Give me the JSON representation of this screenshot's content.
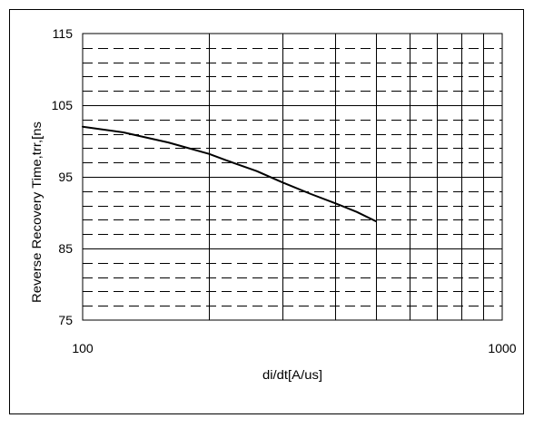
{
  "chart_data": {
    "type": "line",
    "title": "",
    "xlabel": "di/dt[A/us]",
    "ylabel": "Reverse Recovery Time,trr,[ns",
    "x_scale": "log",
    "xlim": [
      100,
      1000
    ],
    "ylim": [
      75,
      115
    ],
    "x_tick_labels": [
      "100",
      "1000"
    ],
    "y_tick_labels": [
      "75",
      "85",
      "95",
      "105",
      "115"
    ],
    "grid": true,
    "series": [
      {
        "x": [
          100,
          125,
          160,
          200,
          220,
          260,
          300,
          350,
          400,
          450,
          500
        ],
        "y": [
          102,
          101.2,
          99.8,
          98.2,
          97.3,
          95.8,
          94.2,
          92.6,
          91.3,
          90.1,
          88.8
        ]
      }
    ]
  }
}
